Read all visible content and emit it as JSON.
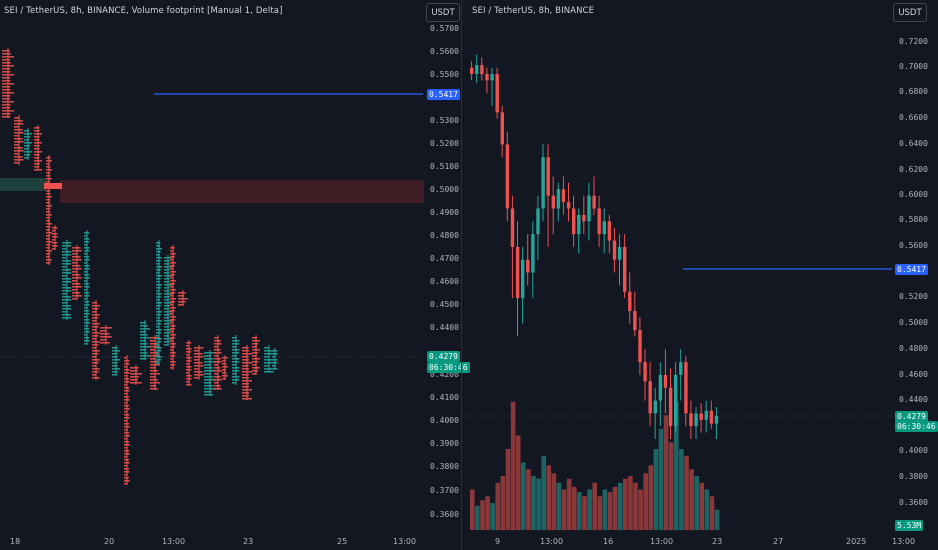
{
  "left_chart": {
    "title": "SEI / TetherUS, 8h, BINANCE, Volume footprint [Manual 1, Delta]",
    "currency_button": "USDT",
    "y_ticks": [
      "0.5700",
      "0.5600",
      "0.5500",
      "0.5300",
      "0.5200",
      "0.5100",
      "0.5000",
      "0.4900",
      "0.4800",
      "0.4700",
      "0.4600",
      "0.4500",
      "0.4400",
      "0.4200",
      "0.4100",
      "0.4000",
      "0.3900",
      "0.3800",
      "0.3700",
      "0.3600"
    ],
    "x_ticks": [
      "18",
      "20",
      "13:00",
      "23",
      "25",
      "13:00"
    ],
    "line_price": "0.5417",
    "last_price": "0.4279",
    "countdown": "06:30:46"
  },
  "right_chart": {
    "title": "SEI / TetherUS, 8h, BINANCE",
    "currency_button": "USDT",
    "y_ticks": [
      "0.7200",
      "0.7000",
      "0.6800",
      "0.6600",
      "0.6400",
      "0.6200",
      "0.6000",
      "0.5800",
      "0.5600",
      "0.5200",
      "0.5000",
      "0.4800",
      "0.4600",
      "0.4400",
      "0.4000",
      "0.3800",
      "0.3600"
    ],
    "x_ticks": [
      "9",
      "13:00",
      "16",
      "13:00",
      "23",
      "27",
      "2025",
      "13:00"
    ],
    "line_price": "0.5417",
    "last_price": "0.4279",
    "countdown": "06:30:46",
    "volume_label": "5.53M"
  },
  "colors": {
    "up": "#26a69a",
    "down": "#ef5350",
    "line": "#2962ff",
    "background": "#131722"
  }
}
